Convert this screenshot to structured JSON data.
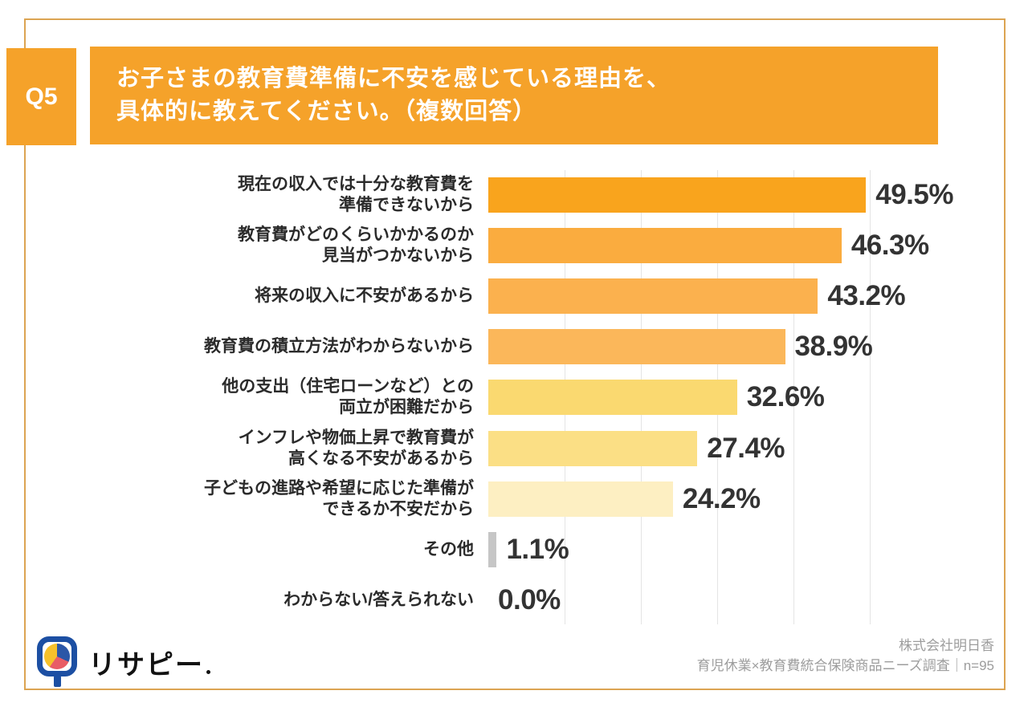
{
  "question": {
    "number": "Q5",
    "title_line1": "お子さまの教育費準備に不安を感じている理由を、",
    "title_line2": "具体的に教えてください。（複数回答）"
  },
  "chart_data": {
    "type": "bar",
    "orientation": "horizontal",
    "xlim": [
      0,
      50
    ],
    "gridline_step": 10,
    "grid": true,
    "categories": [
      "現在の収入では十分な教育費を準備できないから",
      "教育費がどのくらいかかるのか見当がつかないから",
      "将来の収入に不安があるから",
      "教育費の積立方法がわからないから",
      "他の支出（住宅ローンなど）との両立が困難だから",
      "インフレや物価上昇で教育費が高くなる不安があるから",
      "子どもの進路や希望に応じた準備ができるか不安だから",
      "その他",
      "わからない/答えられない"
    ],
    "values": [
      49.5,
      46.3,
      43.2,
      38.9,
      32.6,
      27.4,
      24.2,
      1.1,
      0.0
    ],
    "rows": [
      {
        "label_lines": [
          "現在の収入では十分な教育費を",
          "準備できないから"
        ],
        "value": 49.5,
        "display": "49.5%",
        "color": "#F9A41D"
      },
      {
        "label_lines": [
          "教育費がどのくらいかかるのか",
          "見当がつかないから"
        ],
        "value": 46.3,
        "display": "46.3%",
        "color": "#FAAC3F"
      },
      {
        "label_lines": [
          "将来の収入に不安があるから"
        ],
        "value": 43.2,
        "display": "43.2%",
        "color": "#FBB14E"
      },
      {
        "label_lines": [
          "教育費の積立方法がわからないから"
        ],
        "value": 38.9,
        "display": "38.9%",
        "color": "#FBB75A"
      },
      {
        "label_lines": [
          "他の支出（住宅ローンなど）との",
          "両立が困難だから"
        ],
        "value": 32.6,
        "display": "32.6%",
        "color": "#FAD970"
      },
      {
        "label_lines": [
          "インフレや物価上昇で教育費が",
          "高くなる不安があるから"
        ],
        "value": 27.4,
        "display": "27.4%",
        "color": "#FBDF85"
      },
      {
        "label_lines": [
          "子どもの進路や希望に応じた準備が",
          "できるか不安だから"
        ],
        "value": 24.2,
        "display": "24.2%",
        "color": "#FDEFC2"
      },
      {
        "label_lines": [
          "その他"
        ],
        "value": 1.1,
        "display": "1.1%",
        "color": "#C6C6C6"
      },
      {
        "label_lines": [
          "わからない/答えられない"
        ],
        "value": 0.0,
        "display": "0.0%",
        "color": null
      }
    ]
  },
  "footer": {
    "logo_text": "リサピー",
    "credit_line1": "株式会社明日香",
    "credit_line2": "育児休業×教育費統合保険商品ニーズ調査｜n=95"
  },
  "colors": {
    "accent_orange": "#F5A22A",
    "card_border": "#DCA452",
    "gridline": "#E4E4E4",
    "value_text": "#333333",
    "credit_text": "#9D9D9D",
    "logo_blue": "#1C4FA3",
    "logo_yellow": "#F6C12B",
    "logo_red": "#E85D66",
    "other_bar_gray": "#C6C6C6"
  }
}
